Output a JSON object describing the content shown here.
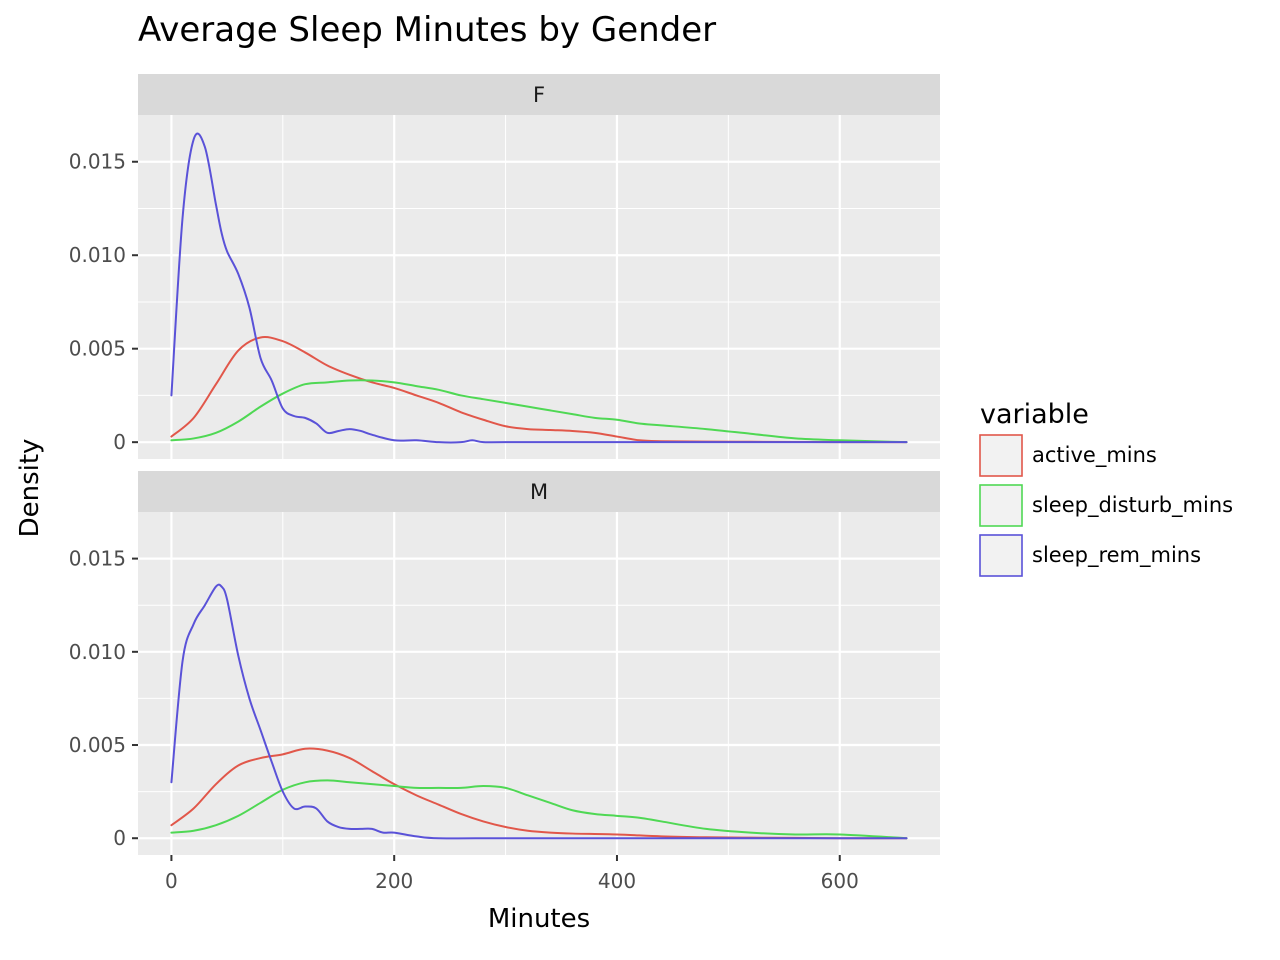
{
  "chart_data": {
    "type": "line",
    "title": "Average Sleep Minutes by Gender",
    "xlabel": "Minutes",
    "ylabel": "Density",
    "xlim": [
      -30,
      690
    ],
    "ylim": [
      -0.0009,
      0.0175
    ],
    "x_ticks": [
      0,
      200,
      400,
      600
    ],
    "x_tick_labels": [
      "0",
      "200",
      "400",
      "600"
    ],
    "y_ticks": [
      0,
      0.005,
      0.01,
      0.015
    ],
    "y_tick_labels": [
      "0",
      "0.005",
      "0.010",
      "0.015"
    ],
    "grid": true,
    "legend": {
      "title": "variable",
      "placement": "right",
      "entries": [
        "active_mins",
        "sleep_disturb_mins",
        "sleep_rem_mins"
      ]
    },
    "colors": {
      "active_mins": "#E1574A",
      "sleep_disturb_mins": "#4FD854",
      "sleep_rem_mins": "#5A52D8"
    },
    "facets": [
      {
        "label": "F",
        "series": [
          {
            "name": "active_mins",
            "x": [
              0,
              20,
              40,
              60,
              80,
              100,
              120,
              140,
              160,
              180,
              200,
              220,
              240,
              260,
              280,
              300,
              320,
              340,
              360,
              380,
              400,
              420,
              440,
              480,
              520,
              560,
              600,
              660
            ],
            "y": [
              0.0003,
              0.0013,
              0.0031,
              0.0049,
              0.0056,
              0.0054,
              0.0048,
              0.0041,
              0.0036,
              0.0032,
              0.0029,
              0.0025,
              0.0021,
              0.0016,
              0.0012,
              0.00085,
              0.0007,
              0.00065,
              0.0006,
              0.0005,
              0.0003,
              0.0001,
              5e-05,
              3e-05,
              2e-05,
              1e-05,
              0.0,
              0.0
            ]
          },
          {
            "name": "sleep_disturb_mins",
            "x": [
              0,
              20,
              40,
              60,
              80,
              100,
              120,
              140,
              160,
              180,
              200,
              220,
              240,
              260,
              280,
              300,
              320,
              340,
              360,
              380,
              400,
              420,
              440,
              480,
              520,
              560,
              600,
              660
            ],
            "y": [
              0.0001,
              0.0002,
              0.0005,
              0.0011,
              0.0019,
              0.0026,
              0.0031,
              0.0032,
              0.0033,
              0.0033,
              0.0032,
              0.003,
              0.0028,
              0.0025,
              0.0023,
              0.0021,
              0.0019,
              0.0017,
              0.0015,
              0.0013,
              0.0012,
              0.001,
              0.0009,
              0.0007,
              0.00045,
              0.0002,
              0.0001,
              0.0
            ]
          },
          {
            "name": "sleep_rem_mins",
            "x": [
              0,
              10,
              20,
              30,
              40,
              45,
              50,
              60,
              70,
              80,
              90,
              100,
              110,
              120,
              130,
              140,
              150,
              160,
              170,
              180,
              200,
              220,
              240,
              260,
              270,
              280,
              300,
              400,
              500,
              600,
              660
            ],
            "y": [
              0.0025,
              0.012,
              0.0162,
              0.0158,
              0.0127,
              0.0112,
              0.0102,
              0.009,
              0.0072,
              0.0045,
              0.0033,
              0.0018,
              0.0014,
              0.0013,
              0.001,
              0.0005,
              0.0006,
              0.0007,
              0.0006,
              0.0004,
              0.0001,
              0.0001,
              0.0,
              0.0,
              0.0001,
              0.0,
              0.0,
              0.0,
              0.0,
              0.0,
              0.0
            ]
          }
        ]
      },
      {
        "label": "M",
        "series": [
          {
            "name": "active_mins",
            "x": [
              0,
              20,
              40,
              60,
              80,
              100,
              120,
              140,
              160,
              180,
              200,
              220,
              240,
              260,
              280,
              300,
              320,
              340,
              360,
              400,
              440,
              480,
              520,
              560,
              600,
              660
            ],
            "y": [
              0.0007,
              0.0016,
              0.0029,
              0.0039,
              0.0043,
              0.0045,
              0.0048,
              0.0047,
              0.0043,
              0.0036,
              0.0029,
              0.0023,
              0.0018,
              0.0013,
              0.0009,
              0.0006,
              0.0004,
              0.0003,
              0.00025,
              0.0002,
              0.0001,
              5e-05,
              3e-05,
              2e-05,
              0.0,
              0.0
            ]
          },
          {
            "name": "sleep_disturb_mins",
            "x": [
              0,
              20,
              40,
              60,
              80,
              100,
              120,
              140,
              160,
              180,
              200,
              220,
              240,
              260,
              280,
              300,
              320,
              340,
              360,
              380,
              400,
              420,
              440,
              480,
              520,
              560,
              600,
              660
            ],
            "y": [
              0.0003,
              0.0004,
              0.0007,
              0.0012,
              0.0019,
              0.0026,
              0.003,
              0.0031,
              0.003,
              0.0029,
              0.0028,
              0.0027,
              0.0027,
              0.0027,
              0.0028,
              0.0027,
              0.0023,
              0.0019,
              0.0015,
              0.0013,
              0.0012,
              0.0011,
              0.0009,
              0.0005,
              0.0003,
              0.0002,
              0.0002,
              0.0
            ]
          },
          {
            "name": "sleep_rem_mins",
            "x": [
              0,
              10,
              20,
              30,
              40,
              45,
              50,
              60,
              70,
              80,
              90,
              100,
              110,
              120,
              130,
              140,
              150,
              160,
              170,
              180,
              190,
              200,
              220,
              240,
              300,
              400,
              500,
              600,
              660
            ],
            "y": [
              0.003,
              0.0095,
              0.0115,
              0.0125,
              0.0135,
              0.0135,
              0.0128,
              0.0098,
              0.0075,
              0.0058,
              0.0041,
              0.0025,
              0.0016,
              0.0017,
              0.0016,
              0.0009,
              0.0006,
              0.0005,
              0.0005,
              0.0005,
              0.0003,
              0.0003,
              0.0001,
              0.0,
              0.0,
              0.0,
              0.0,
              0.0,
              0.0
            ]
          }
        ]
      }
    ]
  }
}
